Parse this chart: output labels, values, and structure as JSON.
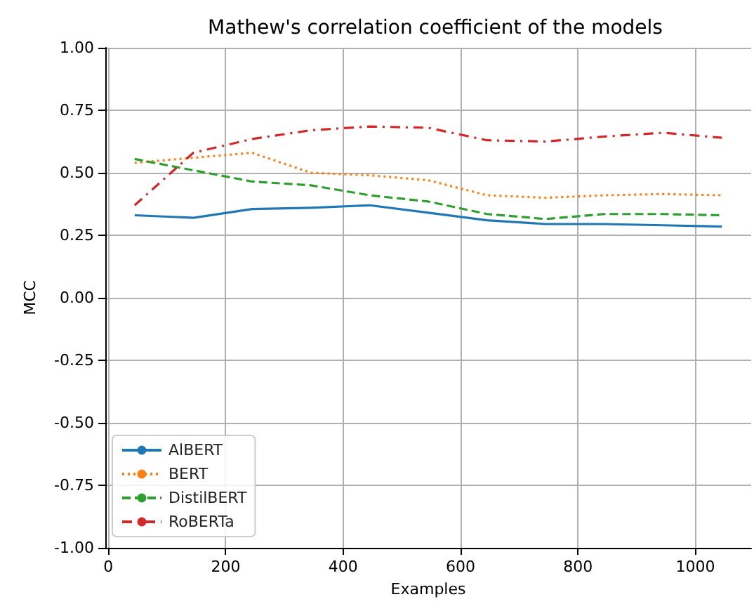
{
  "chart_data": {
    "type": "line",
    "title": "Mathew's correlation coefficient of the models",
    "xlabel": "Examples",
    "ylabel": "MCC",
    "x": [
      45,
      145,
      245,
      345,
      445,
      545,
      645,
      745,
      845,
      945,
      1045
    ],
    "series": [
      {
        "name": "AlBERT",
        "color": "#1f77b4",
        "line_style": "solid",
        "values": [
          0.33,
          0.32,
          0.355,
          0.36,
          0.37,
          0.34,
          0.31,
          0.295,
          0.295,
          0.29,
          0.285
        ]
      },
      {
        "name": "BERT",
        "color": "#ff7f0e",
        "line_style": "dotted",
        "values": [
          0.54,
          0.56,
          0.58,
          0.5,
          0.49,
          0.47,
          0.41,
          0.4,
          0.41,
          0.415,
          0.41
        ]
      },
      {
        "name": "DistilBERT",
        "color": "#2ca02c",
        "line_style": "dashed",
        "values": [
          0.555,
          0.51,
          0.465,
          0.45,
          0.41,
          0.385,
          0.335,
          0.315,
          0.335,
          0.335,
          0.33
        ]
      },
      {
        "name": "RoBERTa",
        "color": "#d62728",
        "line_style": "dashdot",
        "values": [
          0.37,
          0.58,
          0.635,
          0.67,
          0.685,
          0.68,
          0.63,
          0.625,
          0.645,
          0.66,
          0.64
        ]
      }
    ],
    "xlim": [
      -5,
      1095
    ],
    "xticks": [
      0,
      200,
      400,
      600,
      800,
      1000
    ],
    "ylim": [
      -1,
      1
    ],
    "yticks": [
      {
        "value": -1,
        "label": "-1.00"
      },
      {
        "value": -0.75,
        "label": "-0.75"
      },
      {
        "value": -0.5,
        "label": "-0.50"
      },
      {
        "value": -0.25,
        "label": "-0.25"
      },
      {
        "value": 0,
        "label": "0.00"
      },
      {
        "value": 0.25,
        "label": "0.25"
      },
      {
        "value": 0.5,
        "label": "0.50"
      },
      {
        "value": 0.75,
        "label": "0.75"
      },
      {
        "value": 1,
        "label": "1.00"
      }
    ],
    "grid": true,
    "legend": "bottom left",
    "marker": "none"
  }
}
